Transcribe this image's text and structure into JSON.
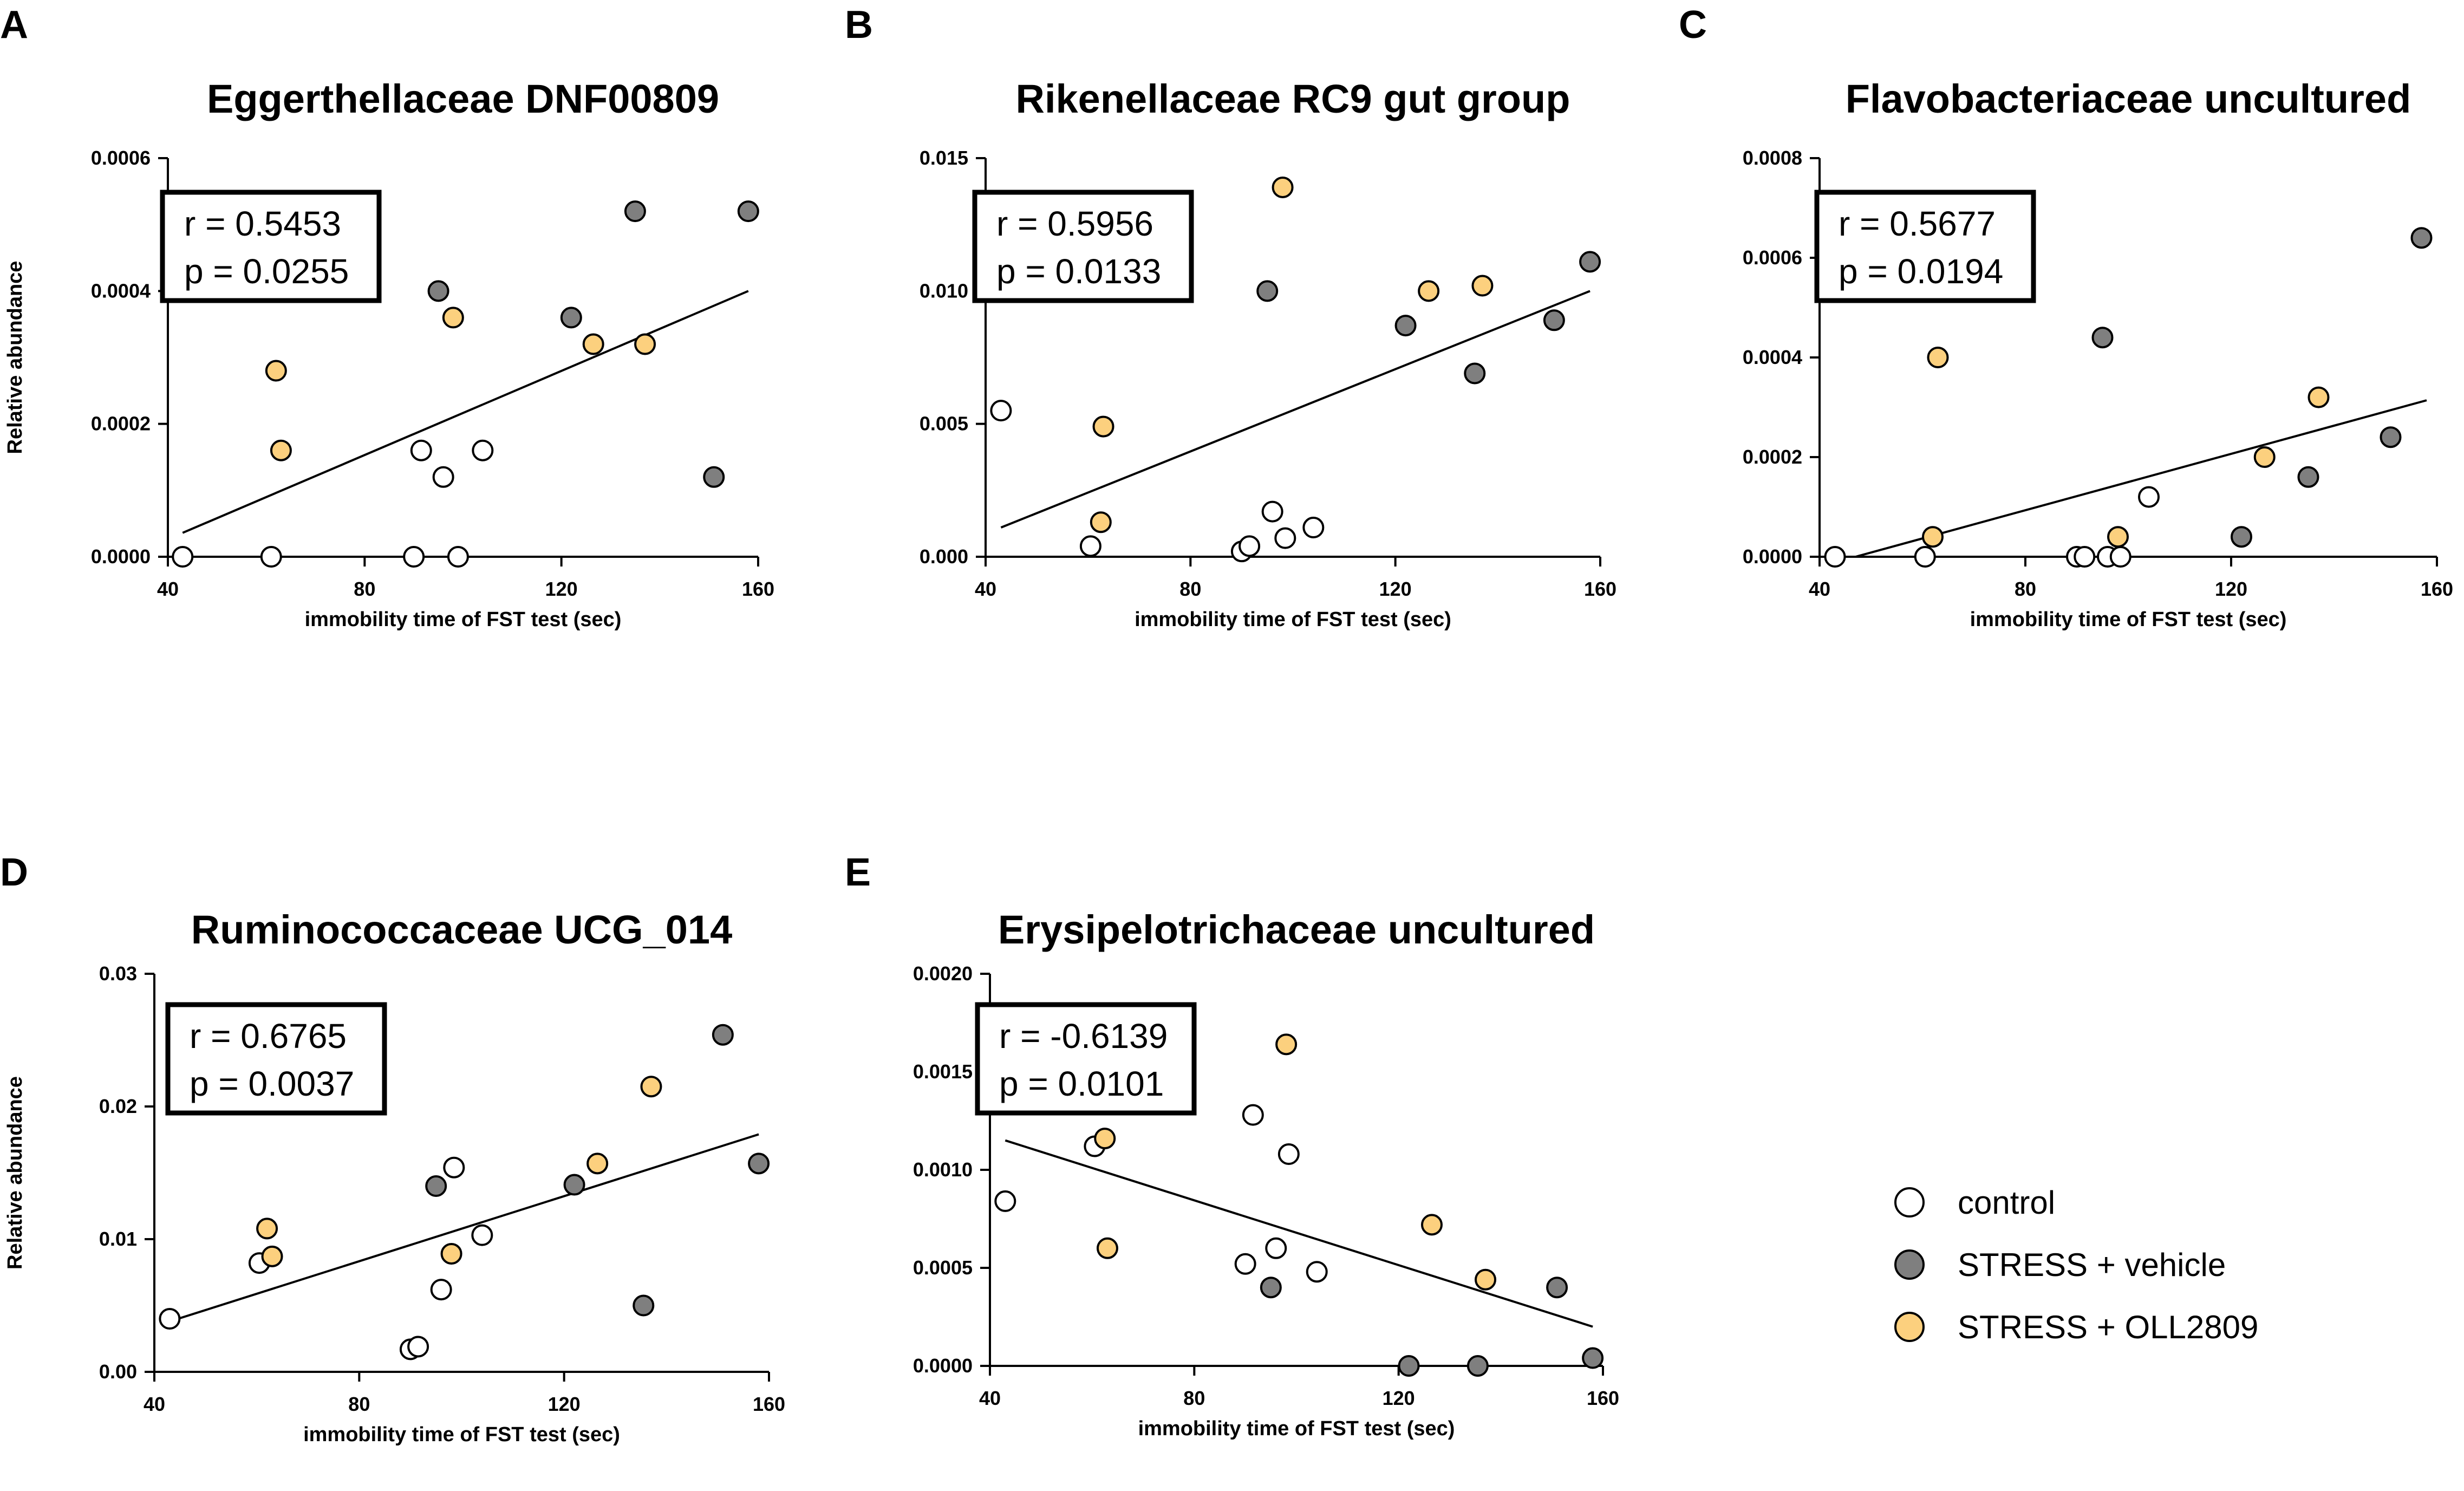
{
  "colors": {
    "control": "#ffffff",
    "stress_vehicle": "#7f7f7f",
    "stress_oll2809": "#fcd07e",
    "stroke": "#000000"
  },
  "legend": {
    "items": [
      {
        "key": "control",
        "label": "control"
      },
      {
        "key": "stress_vehicle",
        "label": "STRESS + vehicle"
      },
      {
        "key": "stress_oll2809",
        "label": "STRESS + OLL2809"
      }
    ]
  },
  "chart_data": [
    {
      "type": "scatter",
      "panel": "A",
      "title": "Eggerthellaceae DNF00809",
      "xlabel": "immobility time of FST test (sec)",
      "ylabel": "Relative abundance",
      "xlim": [
        40,
        160
      ],
      "ylim": [
        0,
        0.0006
      ],
      "xticks": [
        40,
        80,
        120,
        160
      ],
      "xtick_labels": [
        "40",
        "80",
        "120",
        "160"
      ],
      "yticks": [
        0,
        0.0002,
        0.0004,
        0.0006
      ],
      "ytick_labels": [
        "0.0000",
        "0.0002",
        "0.0004",
        "0.0006"
      ],
      "stats": [
        "r = 0.5453",
        "p = 0.0255"
      ],
      "fit_line": {
        "x": [
          43,
          158
        ],
        "y": [
          3.6e-05,
          0.0004
        ]
      },
      "series": [
        {
          "key": "control",
          "name": "control",
          "points": [
            [
              43,
              0
            ],
            [
              61,
              0
            ],
            [
              90,
              0
            ],
            [
              91.5,
              0.00016
            ],
            [
              96,
              0.00012
            ],
            [
              99,
              0
            ],
            [
              104,
              0.00016
            ]
          ]
        },
        {
          "key": "stress_vehicle",
          "name": "STRESS + vehicle",
          "points": [
            [
              95,
              0.0004
            ],
            [
              122,
              0.00036
            ],
            [
              135,
              0.00052
            ],
            [
              151,
              0.00012
            ],
            [
              158,
              0.00052
            ]
          ]
        },
        {
          "key": "stress_oll2809",
          "name": "STRESS + OLL2809",
          "points": [
            [
              62,
              0.00028
            ],
            [
              63,
              0.00016
            ],
            [
              98,
              0.00036
            ],
            [
              126.5,
              0.00032
            ],
            [
              137,
              0.00032
            ]
          ]
        }
      ]
    },
    {
      "type": "scatter",
      "panel": "B",
      "title": "Rikenellaceae RC9 gut group",
      "xlabel": "immobility time of FST test (sec)",
      "ylabel": "",
      "xlim": [
        40,
        160
      ],
      "ylim": [
        0,
        0.015
      ],
      "xticks": [
        40,
        80,
        120,
        160
      ],
      "xtick_labels": [
        "40",
        "80",
        "120",
        "160"
      ],
      "yticks": [
        0,
        0.005,
        0.01,
        0.015
      ],
      "ytick_labels": [
        "0.000",
        "0.005",
        "0.010",
        "0.015"
      ],
      "stats": [
        "r = 0.5956",
        "p = 0.0133"
      ],
      "fit_line": {
        "x": [
          43,
          158
        ],
        "y": [
          0.0011,
          0.01
        ]
      },
      "series": [
        {
          "key": "control",
          "name": "control",
          "points": [
            [
              43,
              0.0055
            ],
            [
              60.5,
              0.0004
            ],
            [
              90,
              0.0002
            ],
            [
              91.5,
              0.0004
            ],
            [
              96,
              0.0017
            ],
            [
              98.5,
              0.0007
            ],
            [
              104,
              0.0011
            ]
          ]
        },
        {
          "key": "stress_vehicle",
          "name": "STRESS + vehicle",
          "points": [
            [
              95,
              0.01
            ],
            [
              122,
              0.0087
            ],
            [
              135.5,
              0.0069
            ],
            [
              151,
              0.0089
            ],
            [
              158,
              0.0111
            ]
          ]
        },
        {
          "key": "stress_oll2809",
          "name": "STRESS + OLL2809",
          "points": [
            [
              62.5,
              0.0013
            ],
            [
              63,
              0.0049
            ],
            [
              98,
              0.0139
            ],
            [
              126.5,
              0.01
            ],
            [
              137,
              0.0102
            ]
          ]
        }
      ]
    },
    {
      "type": "scatter",
      "panel": "C",
      "title": "Flavobacteriaceae uncultured",
      "xlabel": "immobility time of FST test (sec)",
      "ylabel": "",
      "xlim": [
        40,
        160
      ],
      "ylim": [
        0,
        0.0008
      ],
      "xticks": [
        40,
        80,
        120,
        160
      ],
      "xtick_labels": [
        "40",
        "80",
        "120",
        "160"
      ],
      "yticks": [
        0,
        0.0002,
        0.0004,
        0.0006,
        0.0008
      ],
      "ytick_labels": [
        "0.0000",
        "0.0002",
        "0.0004",
        "0.0006",
        "0.0008"
      ],
      "stats": [
        "r = 0.5677",
        "p = 0.0194"
      ],
      "fit_line": {
        "x": [
          47,
          158
        ],
        "y": [
          0,
          0.000314
        ]
      },
      "series": [
        {
          "key": "control",
          "name": "control",
          "points": [
            [
              43,
              0
            ],
            [
              60.5,
              0
            ],
            [
              90,
              0
            ],
            [
              91.5,
              0
            ],
            [
              96,
              0
            ],
            [
              98.5,
              0
            ],
            [
              104,
              0.00012
            ]
          ]
        },
        {
          "key": "stress_vehicle",
          "name": "STRESS + vehicle",
          "points": [
            [
              95,
              0.00044
            ],
            [
              122,
              4e-05
            ],
            [
              135,
              0.00016
            ],
            [
              151,
              0.00024
            ],
            [
              157,
              0.00064
            ]
          ]
        },
        {
          "key": "stress_oll2809",
          "name": "STRESS + OLL2809",
          "points": [
            [
              62,
              4e-05
            ],
            [
              63,
              0.0004
            ],
            [
              98,
              4e-05
            ],
            [
              126.5,
              0.0002
            ],
            [
              137,
              0.00032
            ]
          ]
        }
      ]
    },
    {
      "type": "scatter",
      "panel": "D",
      "title": "Ruminococcaceae UCG_014",
      "xlabel": "immobility time of FST test (sec)",
      "ylabel": "Relative abundance",
      "xlim": [
        40,
        160
      ],
      "ylim": [
        0,
        0.03
      ],
      "xticks": [
        40,
        80,
        120,
        160
      ],
      "xtick_labels": [
        "40",
        "80",
        "120",
        "160"
      ],
      "yticks": [
        0,
        0.01,
        0.02,
        0.03
      ],
      "ytick_labels": [
        "0.00",
        "0.01",
        "0.02",
        "0.03"
      ],
      "stats": [
        "r = 0.6765",
        "p = 0.0037"
      ],
      "fit_line": {
        "x": [
          43,
          158
        ],
        "y": [
          0.0038,
          0.0179
        ]
      },
      "series": [
        {
          "key": "control",
          "name": "control",
          "points": [
            [
              43,
              0.004
            ],
            [
              60.5,
              0.0082
            ],
            [
              90,
              0.0017
            ],
            [
              91.5,
              0.0019
            ],
            [
              96,
              0.0062
            ],
            [
              98.5,
              0.0154
            ],
            [
              104,
              0.0103
            ]
          ]
        },
        {
          "key": "stress_vehicle",
          "name": "STRESS + vehicle",
          "points": [
            [
              95,
              0.014
            ],
            [
              122,
              0.0141
            ],
            [
              135.5,
              0.005
            ],
            [
              151,
              0.0254
            ],
            [
              158,
              0.0157
            ]
          ]
        },
        {
          "key": "stress_oll2809",
          "name": "STRESS + OLL2809",
          "points": [
            [
              62,
              0.0108
            ],
            [
              63,
              0.0087
            ],
            [
              98,
              0.0089
            ],
            [
              126.5,
              0.0157
            ],
            [
              137,
              0.0215
            ]
          ]
        }
      ]
    },
    {
      "type": "scatter",
      "panel": "E",
      "title": "Erysipelotrichaceae uncultured",
      "xlabel": "immobility time of FST test (sec)",
      "ylabel": "",
      "xlim": [
        40,
        160
      ],
      "ylim": [
        0,
        0.002
      ],
      "xticks": [
        40,
        80,
        120,
        160
      ],
      "xtick_labels": [
        "40",
        "80",
        "120",
        "160"
      ],
      "yticks": [
        0,
        0.0005,
        0.001,
        0.0015,
        0.002
      ],
      "ytick_labels": [
        "0.0000",
        "0.0005",
        "0.0010",
        "0.0015",
        "0.0020"
      ],
      "stats": [
        "r = -0.6139",
        "p = 0.0101"
      ],
      "fit_line": {
        "x": [
          43,
          158
        ],
        "y": [
          0.00115,
          0.0002
        ]
      },
      "series": [
        {
          "key": "control",
          "name": "control",
          "points": [
            [
              43,
              0.00084
            ],
            [
              60.5,
              0.00112
            ],
            [
              90,
              0.00052
            ],
            [
              91.5,
              0.00128
            ],
            [
              96,
              0.0006
            ],
            [
              98.5,
              0.00108
            ],
            [
              104,
              0.00048
            ]
          ]
        },
        {
          "key": "stress_vehicle",
          "name": "STRESS + vehicle",
          "points": [
            [
              95,
              0.0004
            ],
            [
              122,
              0
            ],
            [
              135.5,
              0
            ],
            [
              151,
              0.0004
            ],
            [
              158,
              4e-05
            ]
          ]
        },
        {
          "key": "stress_oll2809",
          "name": "STRESS + OLL2809",
          "points": [
            [
              62.5,
              0.00116
            ],
            [
              63,
              0.0006
            ],
            [
              98,
              0.00164
            ],
            [
              126.5,
              0.00072
            ],
            [
              137,
              0.00044
            ]
          ]
        }
      ]
    }
  ]
}
